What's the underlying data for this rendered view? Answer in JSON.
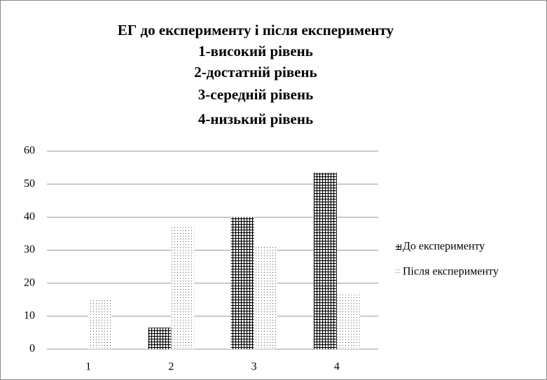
{
  "chart_data": {
    "type": "bar",
    "title": "ЕГ до експерименту і після експерименту",
    "subtitle": [
      "1-високий рівень",
      "2-достатній рівень",
      "3-середній рівень",
      "4-низький рівень"
    ],
    "categories": [
      "1",
      "2",
      "3",
      "4"
    ],
    "series": [
      {
        "name": "До експерименту",
        "color": "#000000",
        "values": [
          0,
          6.5,
          40,
          53.5
        ]
      },
      {
        "name": "Після експерименту",
        "color": "#555555",
        "values": [
          15.5,
          37,
          31.5,
          16.5
        ]
      }
    ],
    "ylim": [
      0,
      60
    ],
    "yticks": [
      0,
      10,
      20,
      30,
      40,
      50,
      60
    ],
    "grid": true
  }
}
